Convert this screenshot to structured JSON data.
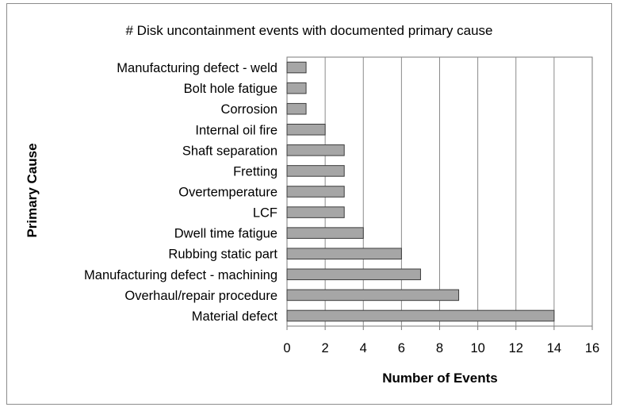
{
  "chart_data": {
    "type": "bar",
    "orientation": "horizontal",
    "title": "# Disk uncontainment events with documented primary cause",
    "xlabel": "Number of Events",
    "ylabel": "Primary Cause",
    "categories": [
      "Manufacturing defect - weld",
      "Bolt hole fatigue",
      "Corrosion",
      "Internal oil fire",
      "Shaft separation",
      "Fretting",
      "Overtemperature",
      "LCF",
      "Dwell time fatigue",
      "Rubbing static part",
      "Manufacturing defect - machining",
      "Overhaul/repair procedure",
      "Material defect"
    ],
    "values": [
      1,
      1,
      1,
      2,
      3,
      3,
      3,
      3,
      4,
      6,
      7,
      9,
      14
    ],
    "xlim": [
      0,
      16
    ],
    "xticks": [
      "0",
      "2",
      "4",
      "6",
      "8",
      "10",
      "12",
      "14",
      "16"
    ],
    "grid": "vertical",
    "bar_color": "#a6a6a6",
    "plot_background": "#ffffff"
  }
}
